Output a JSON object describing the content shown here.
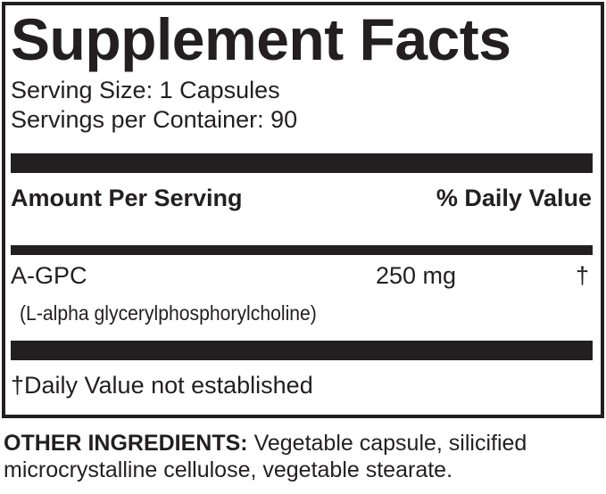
{
  "title": "Supplement Facts",
  "serving_size": "Serving Size: 1 Capsules",
  "servings_per_container": "Servings per Container: 90",
  "header": {
    "amount": "Amount Per Serving",
    "daily_value": "% Daily Value"
  },
  "ingredients": [
    {
      "name": "A-GPC",
      "detail": "(L-alpha glycerylphosphorylcholine)",
      "amount": "250 mg",
      "dv": "†"
    }
  ],
  "footnote": "†Daily Value not established",
  "other_ingredients": {
    "label": "OTHER INGREDIENTS:",
    "line1": " Vegetable capsule, silicified",
    "line2": "microcrystalline cellulose, vegetable stearate."
  }
}
